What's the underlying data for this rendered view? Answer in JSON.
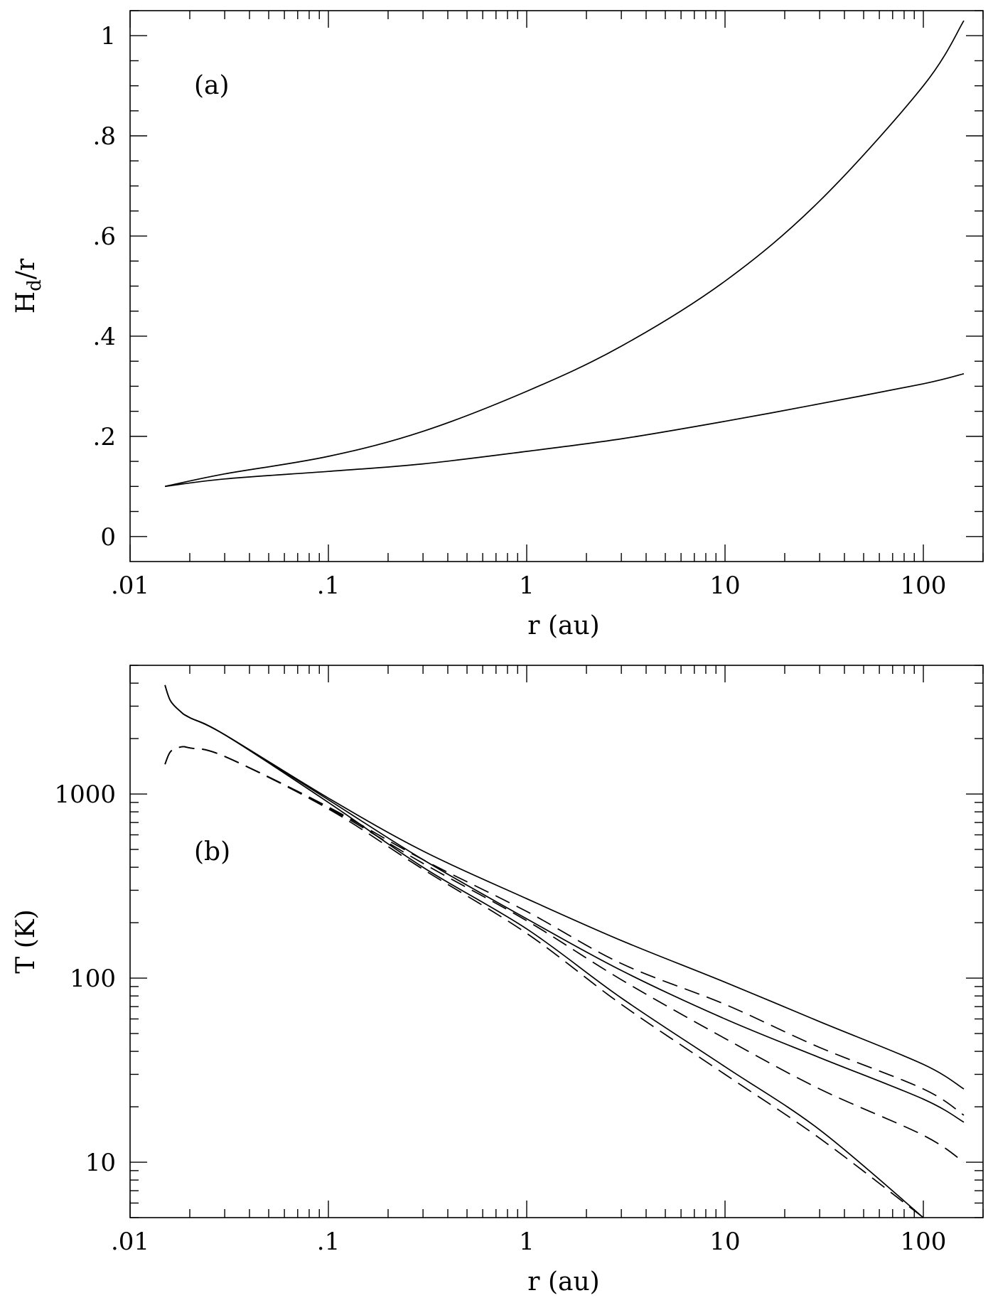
{
  "chart_data": [
    {
      "panel_label": "(a)",
      "type": "line",
      "xlabel": "r (au)",
      "ylabel": "H_d/r",
      "xscale": "log",
      "yscale": "linear",
      "xlim": [
        0.01,
        200
      ],
      "ylim": [
        -0.05,
        1.05
      ],
      "x_ticks": [
        0.01,
        0.1,
        1,
        10,
        100
      ],
      "x_tick_labels": [
        ".01",
        ".1",
        "1",
        "10",
        "100"
      ],
      "y_ticks": [
        0,
        0.2,
        0.4,
        0.6,
        0.8,
        1.0
      ],
      "y_tick_labels": [
        "0",
        ".2",
        ".4",
        ".6",
        ".8",
        "1"
      ],
      "grid": false,
      "series": [
        {
          "style": "solid",
          "x": [
            0.015,
            0.03,
            0.1,
            0.3,
            1,
            3,
            10,
            30,
            100,
            160
          ],
          "y": [
            0.1,
            0.125,
            0.16,
            0.21,
            0.29,
            0.38,
            0.51,
            0.67,
            0.9,
            1.03
          ]
        },
        {
          "style": "solid",
          "x": [
            0.015,
            0.03,
            0.1,
            0.3,
            1,
            3,
            10,
            30,
            100,
            160
          ],
          "y": [
            0.1,
            0.115,
            0.13,
            0.145,
            0.17,
            0.195,
            0.23,
            0.265,
            0.305,
            0.325
          ]
        }
      ]
    },
    {
      "panel_label": "(b)",
      "type": "line",
      "xlabel": "r (au)",
      "ylabel": "T (K)",
      "xscale": "log",
      "yscale": "log",
      "xlim": [
        0.01,
        200
      ],
      "ylim": [
        5,
        5000
      ],
      "x_ticks": [
        0.01,
        0.1,
        1,
        10,
        100
      ],
      "x_tick_labels": [
        ".01",
        ".1",
        "1",
        "10",
        "100"
      ],
      "y_ticks": [
        10,
        100,
        1000
      ],
      "y_tick_labels": [
        "10",
        "100",
        "1000"
      ],
      "grid": false,
      "series": [
        {
          "style": "solid",
          "x": [
            0.015,
            0.016,
            0.018,
            0.02,
            0.03,
            0.1,
            0.3,
            1,
            3,
            10,
            30,
            100,
            160
          ],
          "y": [
            3900,
            3200,
            2800,
            2600,
            2100,
            950,
            490,
            270,
            160,
            95,
            58,
            34,
            25
          ]
        },
        {
          "style": "solid",
          "x": [
            0.015,
            0.016,
            0.018,
            0.02,
            0.03,
            0.1,
            0.3,
            1,
            3,
            10,
            30,
            100,
            160
          ],
          "y": [
            3900,
            3200,
            2800,
            2600,
            2100,
            930,
            440,
            210,
            110,
            60,
            37,
            22,
            16.5
          ]
        },
        {
          "style": "solid",
          "x": [
            0.015,
            0.016,
            0.018,
            0.02,
            0.03,
            0.1,
            0.3,
            1,
            3,
            10,
            30,
            100
          ],
          "y": [
            3900,
            3200,
            2800,
            2600,
            2100,
            900,
            400,
            185,
            78,
            33,
            15,
            5.0
          ]
        },
        {
          "style": "dashed",
          "x": [
            0.015,
            0.016,
            0.018,
            0.02,
            0.03,
            0.1,
            0.3,
            1,
            3,
            10,
            30,
            100,
            160
          ],
          "y": [
            1450,
            1700,
            1800,
            1780,
            1600,
            850,
            440,
            230,
            120,
            72,
            42,
            25,
            18
          ]
        },
        {
          "style": "dashed",
          "x": [
            0.015,
            0.016,
            0.018,
            0.02,
            0.03,
            0.1,
            0.3,
            1,
            3,
            10,
            30,
            100,
            160
          ],
          "y": [
            1450,
            1700,
            1800,
            1780,
            1600,
            840,
            420,
            205,
            98,
            47,
            25,
            14,
            10
          ]
        },
        {
          "style": "dashed",
          "x": [
            0.015,
            0.016,
            0.018,
            0.02,
            0.03,
            0.1,
            0.3,
            1,
            3,
            10,
            30,
            100
          ],
          "y": [
            1450,
            1700,
            1800,
            1780,
            1600,
            830,
            390,
            175,
            72,
            30,
            13.5,
            5.0
          ]
        }
      ]
    }
  ]
}
